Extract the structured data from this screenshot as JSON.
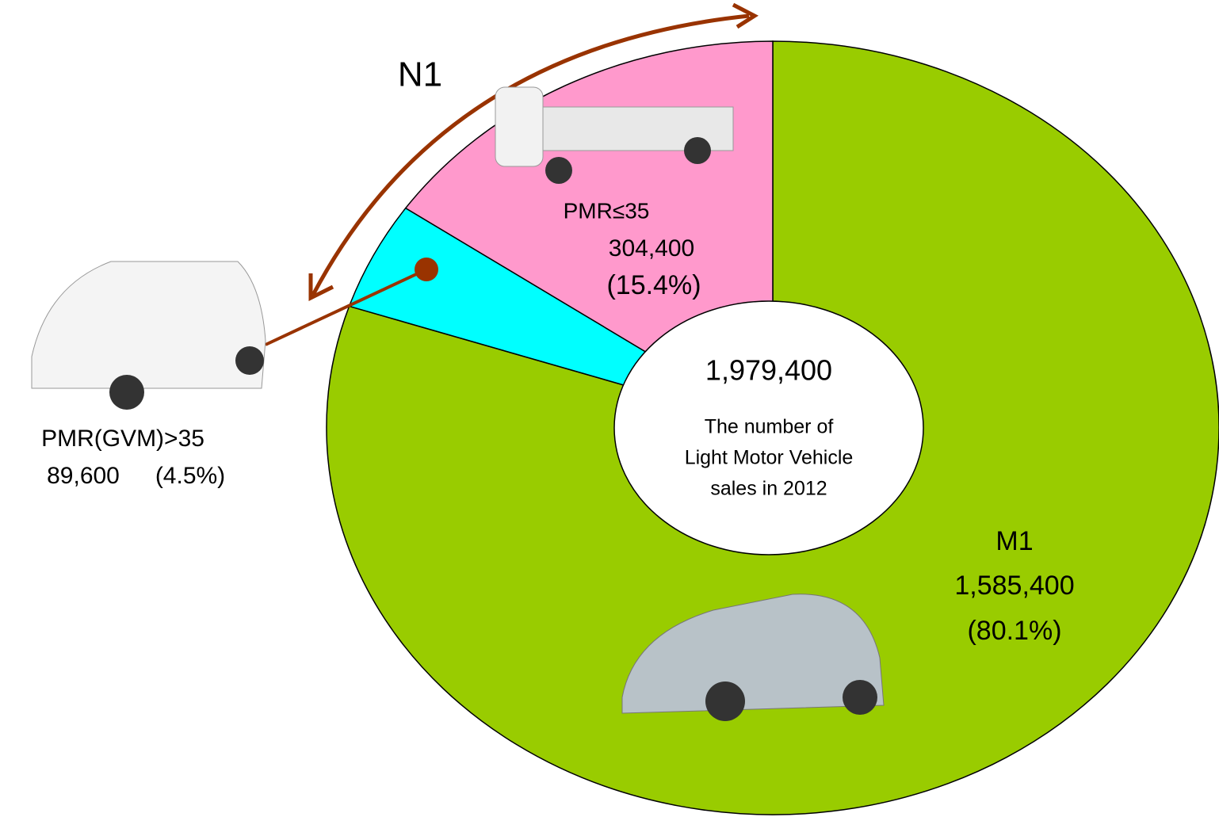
{
  "chart_data": {
    "type": "pie",
    "categories": [
      "M1",
      "PMR(GVM)>35",
      "PMR≤35"
    ],
    "values": [
      1585400,
      89600,
      304400
    ],
    "value_labels": [
      "1,585,400",
      "89,600",
      "304,400"
    ],
    "percents": [
      80.1,
      4.5,
      15.4
    ],
    "percent_labels": [
      "(80.1%)",
      "(4.5%)",
      "(15.4%)"
    ],
    "colors": [
      "#99cc00",
      "#00ffff",
      "#ff99cc"
    ],
    "total": 1979400,
    "total_label": "1,979,400",
    "center_text": [
      "The number of",
      "Light Motor Vehicle",
      "sales in 2012"
    ],
    "group_label": "N1"
  }
}
